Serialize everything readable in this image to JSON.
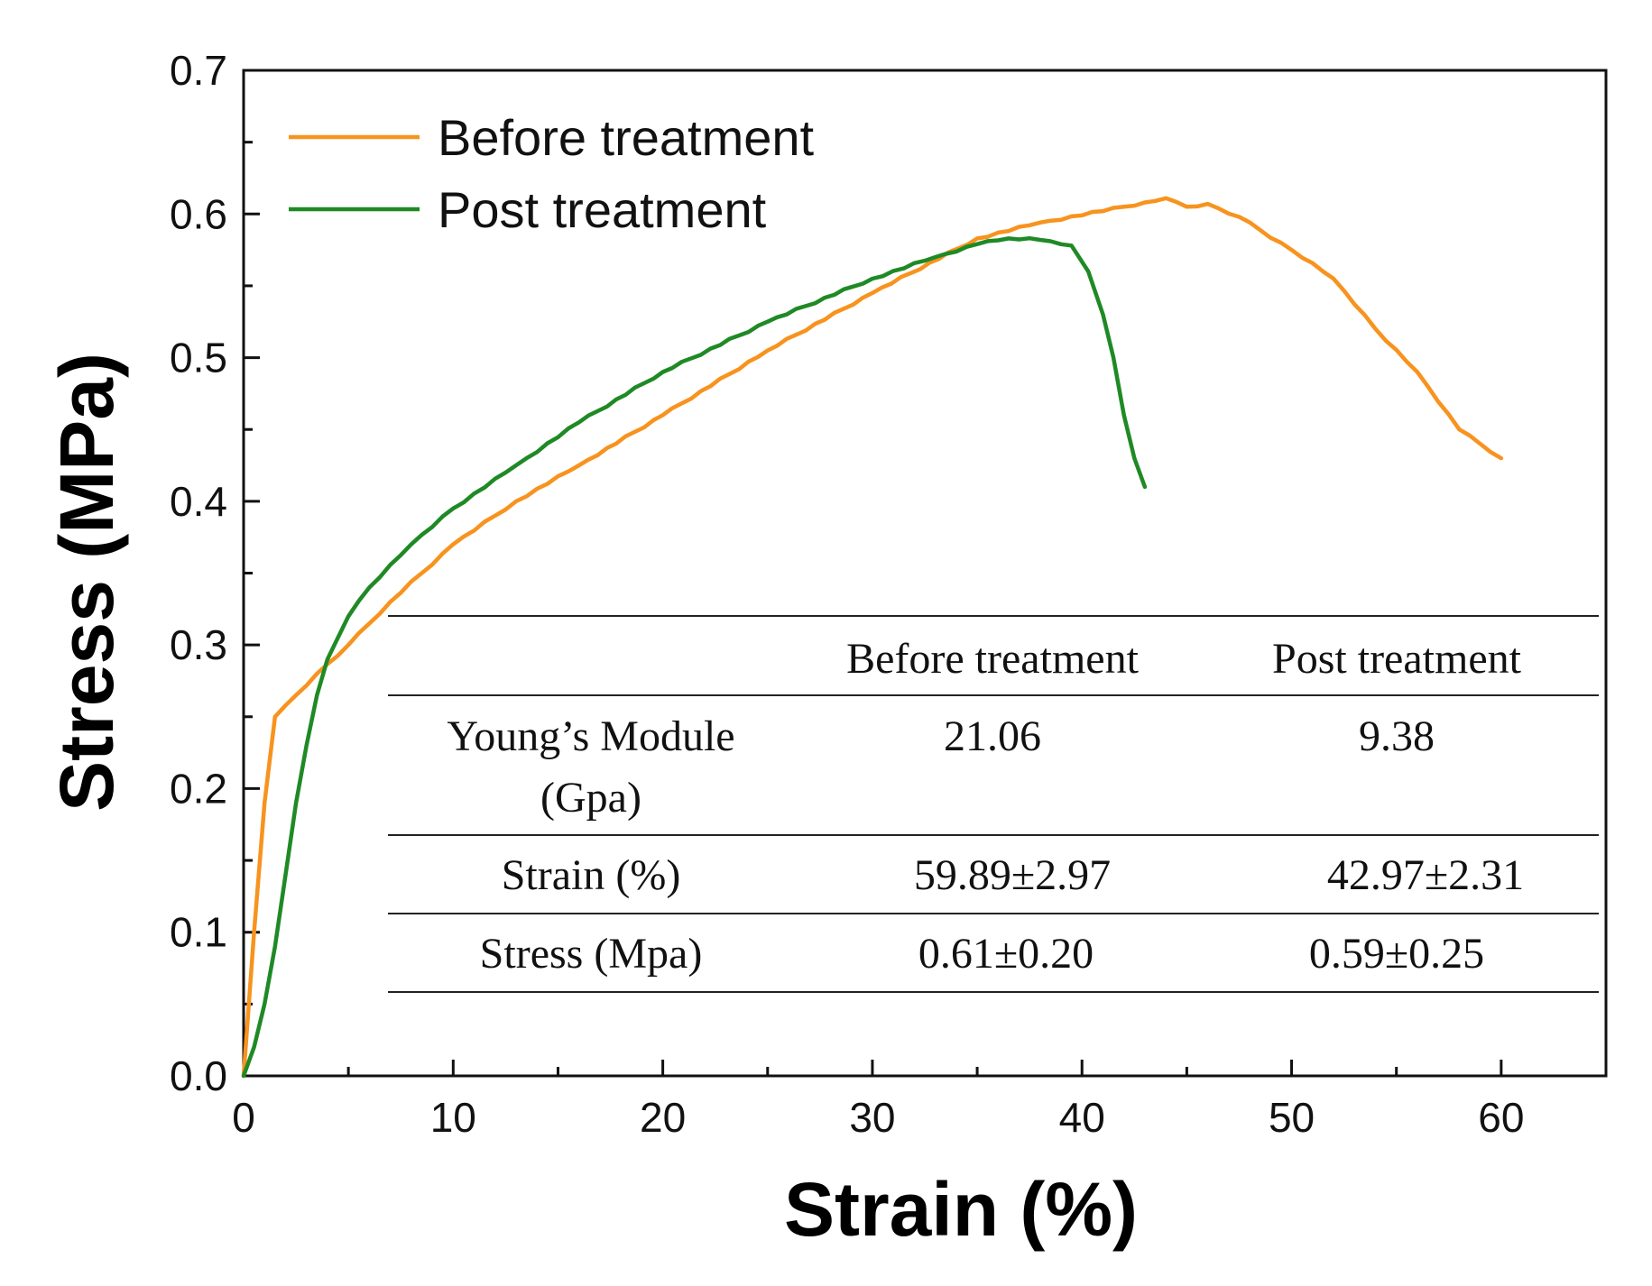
{
  "chart_data": {
    "type": "line",
    "title": "",
    "xlabel": "Strain (%)",
    "ylabel": "Stress (MPa)",
    "xlim": [
      0,
      65
    ],
    "ylim": [
      0,
      0.7
    ],
    "xticks": [
      0,
      10,
      20,
      30,
      40,
      50,
      60
    ],
    "xtick_labels": [
      "0",
      "10",
      "20",
      "30",
      "40",
      "50",
      "60"
    ],
    "yticks": [
      0.0,
      0.1,
      0.2,
      0.3,
      0.4,
      0.5,
      0.6,
      0.7
    ],
    "ytick_labels": [
      "0.0",
      "0.1",
      "0.2",
      "0.3",
      "0.4",
      "0.5",
      "0.6",
      "0.7"
    ],
    "grid": false,
    "legend_position": "top-left",
    "series": [
      {
        "name": "Before treatment",
        "color": "#F7931E",
        "x": [
          0,
          0.5,
          1.0,
          1.5,
          2.5,
          3.5,
          5,
          7,
          10,
          13,
          16,
          20,
          25,
          30,
          35,
          38,
          41,
          43,
          44,
          45,
          46,
          47.5,
          50,
          52,
          54,
          56,
          58,
          60
        ],
        "y": [
          0.0,
          0.1,
          0.19,
          0.25,
          0.265,
          0.28,
          0.3,
          0.33,
          0.37,
          0.4,
          0.425,
          0.46,
          0.505,
          0.545,
          0.583,
          0.594,
          0.602,
          0.608,
          0.611,
          0.605,
          0.607,
          0.598,
          0.575,
          0.555,
          0.52,
          0.49,
          0.45,
          0.43
        ]
      },
      {
        "name": "Post treatment",
        "color": "#1F8A25",
        "x": [
          0,
          0.5,
          1.0,
          1.5,
          2,
          2.5,
          3,
          3.5,
          4,
          5,
          6,
          8,
          10,
          13,
          16,
          20,
          25,
          30,
          33,
          35,
          36.5,
          38,
          39.5,
          40.3,
          41,
          41.5,
          42,
          42.5,
          43
        ],
        "y": [
          0.0,
          0.02,
          0.05,
          0.09,
          0.14,
          0.19,
          0.23,
          0.265,
          0.29,
          0.32,
          0.34,
          0.37,
          0.395,
          0.425,
          0.455,
          0.49,
          0.525,
          0.555,
          0.57,
          0.579,
          0.583,
          0.582,
          0.578,
          0.56,
          0.53,
          0.5,
          0.46,
          0.43,
          0.41
        ]
      }
    ],
    "inset_table": {
      "headers": [
        "",
        "Before treatment",
        "Post treatment"
      ],
      "rows": [
        {
          "label_lines": [
            "Young’s Module",
            "(Gpa)"
          ],
          "before": "21.06",
          "post": "9.38"
        },
        {
          "label_lines": [
            "Strain (%)"
          ],
          "before": "59.89±2.97",
          "post": "42.97±2.31"
        },
        {
          "label_lines": [
            "Stress (Mpa)"
          ],
          "before": "0.61±0.20",
          "post": "0.59±0.25"
        }
      ]
    }
  }
}
